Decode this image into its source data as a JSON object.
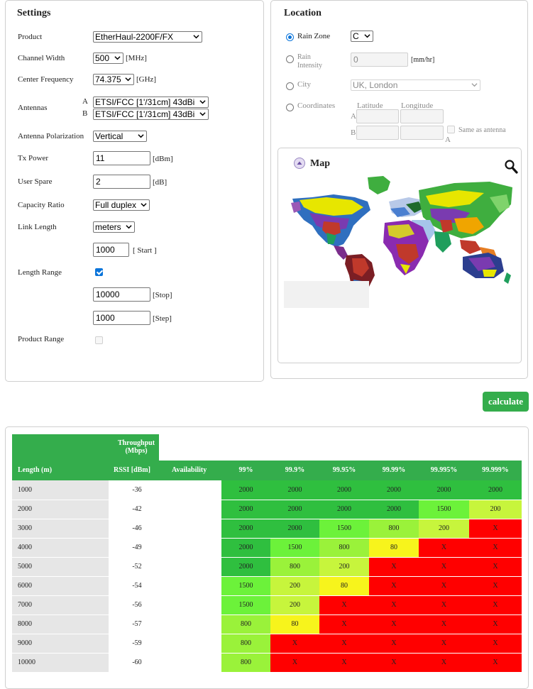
{
  "settings": {
    "title": "Settings",
    "product_label": "Product",
    "product_value": "EtherHaul-2200F/FX",
    "channel_width_label": "Channel Width",
    "channel_width_value": "500",
    "channel_width_unit": "[MHz]",
    "center_freq_label": "Center Frequency",
    "center_freq_value": "74.375",
    "center_freq_unit": "[GHz]",
    "antennas_label": "Antennas",
    "antenna_a_tag": "A",
    "antenna_a_value": "ETSI/FCC [1'/31cm] 43dBi",
    "antenna_b_tag": "B",
    "antenna_b_value": "ETSI/FCC [1'/31cm] 43dBi",
    "polarization_label": "Antenna Polarization",
    "polarization_value": "Vertical",
    "tx_power_label": "Tx Power",
    "tx_power_value": "11",
    "tx_power_unit": "[dBm]",
    "user_spare_label": "User Spare",
    "user_spare_value": "2",
    "user_spare_unit": "[dB]",
    "capacity_ratio_label": "Capacity Ratio",
    "capacity_ratio_value": "Full duplex",
    "link_length_label": "Link Length",
    "link_length_unit_value": "meters",
    "start_value": "1000",
    "start_label": "[ Start ]",
    "length_range_label": "Length Range",
    "length_range_checked": true,
    "stop_value": "10000",
    "stop_label": "[Stop]",
    "step_value": "1000",
    "step_label": "[Step]",
    "product_range_label": "Product Range",
    "product_range_checked": false
  },
  "location": {
    "title": "Location",
    "rain_zone_label": "Rain Zone",
    "rain_zone_value": "C",
    "rain_intensity_label_1": "Rain",
    "rain_intensity_label_2": "Intensity",
    "rain_intensity_value": "0",
    "rain_intensity_unit": "[mm/hr]",
    "city_label": "City",
    "city_value": "UK, London",
    "coordinates_label": "Coordinates",
    "latitude_label": "Latitude",
    "longitude_label": "Longitude",
    "coord_a_tag": "A",
    "coord_b_tag": "B",
    "same_as_antenna_label": "Same as antenna",
    "same_as_antenna_tag": "A",
    "map_title": "Map"
  },
  "calculate_label": "calculate",
  "results": {
    "throughput_header": "Throughput\n(Mbps)",
    "col_length": "Length (m)",
    "col_rssi": "RSSI [dBm]",
    "col_availability": "Availability",
    "availability_cols": [
      "99%",
      "99.9%",
      "99.95%",
      "99.99%",
      "99.995%",
      "99.999%"
    ],
    "rows": [
      {
        "length": "1000",
        "rssi": "-36",
        "values": [
          "2000",
          "2000",
          "2000",
          "2000",
          "2000",
          "2000"
        ]
      },
      {
        "length": "2000",
        "rssi": "-42",
        "values": [
          "2000",
          "2000",
          "2000",
          "2000",
          "1500",
          "200"
        ]
      },
      {
        "length": "3000",
        "rssi": "-46",
        "values": [
          "2000",
          "2000",
          "1500",
          "800",
          "200",
          "X"
        ]
      },
      {
        "length": "4000",
        "rssi": "-49",
        "values": [
          "2000",
          "1500",
          "800",
          "80",
          "X",
          "X"
        ]
      },
      {
        "length": "5000",
        "rssi": "-52",
        "values": [
          "2000",
          "800",
          "200",
          "X",
          "X",
          "X"
        ]
      },
      {
        "length": "6000",
        "rssi": "-54",
        "values": [
          "1500",
          "200",
          "80",
          "X",
          "X",
          "X"
        ]
      },
      {
        "length": "7000",
        "rssi": "-56",
        "values": [
          "1500",
          "200",
          "X",
          "X",
          "X",
          "X"
        ]
      },
      {
        "length": "8000",
        "rssi": "-57",
        "values": [
          "800",
          "80",
          "X",
          "X",
          "X",
          "X"
        ]
      },
      {
        "length": "9000",
        "rssi": "-59",
        "values": [
          "800",
          "X",
          "X",
          "X",
          "X",
          "X"
        ]
      },
      {
        "length": "10000",
        "rssi": "-60",
        "values": [
          "800",
          "X",
          "X",
          "X",
          "X",
          "X"
        ]
      }
    ],
    "value_colors": {
      "2000": "#2fbf3f",
      "1500": "#6cf23a",
      "800": "#9af23a",
      "200": "#c7f53c",
      "80": "#f7f41c",
      "X": "#ff0000"
    },
    "header_color": "#34ad4c"
  }
}
